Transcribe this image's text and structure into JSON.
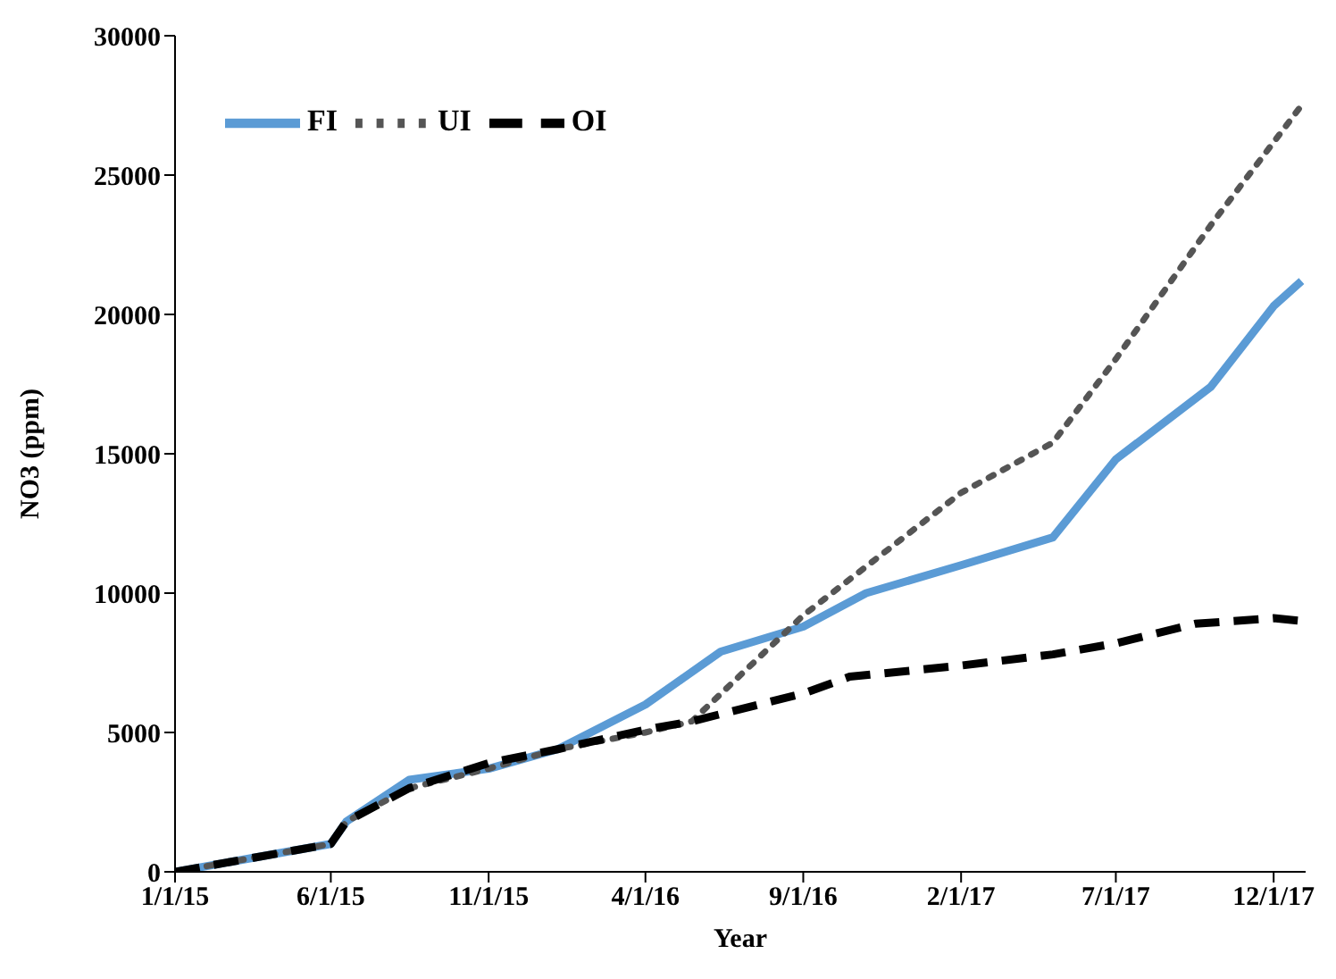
{
  "chart_data": {
    "type": "line",
    "xlabel": "Year",
    "ylabel": "NO3 (ppm)",
    "xlim": [
      "2015-01-01",
      "2018-01-01"
    ],
    "xticks": [
      {
        "value": "2015-01-01",
        "label": "1/1/15"
      },
      {
        "value": "2015-06-01",
        "label": "6/1/15"
      },
      {
        "value": "2015-11-01",
        "label": "11/1/15"
      },
      {
        "value": "2016-04-01",
        "label": "4/1/16"
      },
      {
        "value": "2016-09-01",
        "label": "9/1/16"
      },
      {
        "value": "2017-02-01",
        "label": "2/1/17"
      },
      {
        "value": "2017-07-01",
        "label": "7/1/17"
      },
      {
        "value": "2017-12-01",
        "label": "12/1/17"
      }
    ],
    "ylim": [
      0,
      30000
    ],
    "yticks": [
      0,
      5000,
      10000,
      15000,
      20000,
      25000,
      30000
    ],
    "legend": "top left",
    "marker": "none",
    "series": [
      {
        "name": "FI",
        "color": "#5b9bd5",
        "line_style": "solid",
        "x": [
          "2015-01-01",
          "2015-06-01",
          "2015-06-16",
          "2015-08-16",
          "2015-11-01",
          "2016-01-07",
          "2016-04-01",
          "2016-06-13",
          "2016-09-01",
          "2016-11-01",
          "2017-02-01",
          "2017-05-01",
          "2017-07-01",
          "2017-10-01",
          "2017-12-01",
          "2017-12-28"
        ],
        "values": [
          0,
          1000,
          1800,
          3300,
          3700,
          4400,
          6000,
          7900,
          8800,
          10000,
          11000,
          12000,
          14800,
          17400,
          20300,
          21200
        ]
      },
      {
        "name": "UI",
        "color": "#555555",
        "line_style": "dotted",
        "x": [
          "2015-01-01",
          "2015-06-01",
          "2015-06-16",
          "2015-08-16",
          "2015-11-01",
          "2016-01-07",
          "2016-04-01",
          "2016-05-16",
          "2016-09-01",
          "2017-02-01",
          "2017-05-01",
          "2017-07-01",
          "2017-10-01",
          "2017-12-28"
        ],
        "values": [
          0,
          1000,
          1800,
          3000,
          3700,
          4400,
          5000,
          5400,
          9200,
          13600,
          15400,
          18400,
          23200,
          27500
        ]
      },
      {
        "name": "OI",
        "color": "#000000",
        "line_style": "dashed",
        "x": [
          "2015-01-01",
          "2015-06-01",
          "2015-06-16",
          "2015-08-16",
          "2015-11-01",
          "2016-01-07",
          "2016-04-01",
          "2016-05-16",
          "2016-09-01",
          "2016-10-16",
          "2017-02-01",
          "2017-05-01",
          "2017-07-01",
          "2017-09-16",
          "2017-12-01",
          "2017-12-28"
        ],
        "values": [
          0,
          1000,
          1800,
          3000,
          3900,
          4400,
          5100,
          5400,
          6400,
          7000,
          7400,
          7800,
          8200,
          8900,
          9100,
          9000
        ]
      }
    ]
  }
}
